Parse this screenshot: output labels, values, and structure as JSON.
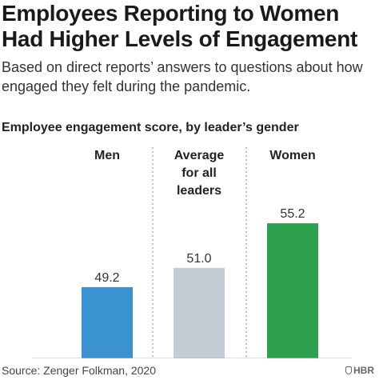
{
  "header": {
    "title": "Employees Reporting to Women Had Higher Levels of Engagement",
    "subtitle": "Based on direct reports’ answers to questions about how engaged they felt during the pandemic.",
    "chart_label": "Employee engagement score, by leader’s gender"
  },
  "footer": {
    "source": "Source: Zenger Folkman, 2020",
    "logo_text": "HBR"
  },
  "chart_data": {
    "type": "bar",
    "title": "Employee engagement score, by leader’s gender",
    "categories": [
      [
        "Men"
      ],
      [
        "Average",
        "for all",
        "leaders"
      ],
      [
        "Women"
      ]
    ],
    "values": [
      49.2,
      51.0,
      55.2
    ],
    "value_labels": [
      "49.2",
      "51.0",
      "55.2"
    ],
    "colors": [
      "#3a92d1",
      "#c2ccd4",
      "#2ea14e"
    ],
    "grid": false,
    "separators": "dotted vertical lines between categories"
  }
}
